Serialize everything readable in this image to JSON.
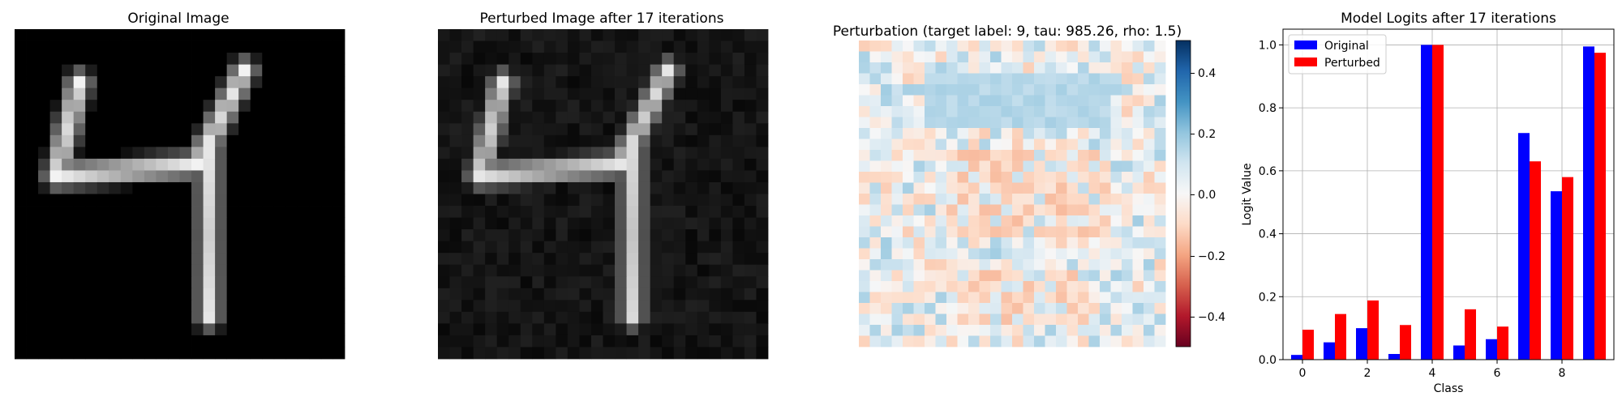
{
  "chart_data": [
    {
      "type": "image",
      "title": "Original Image",
      "colormap": "gray",
      "grid_size": [
        28,
        28
      ],
      "strokes": [
        {
          "from": [
            5,
            4
          ],
          "to": [
            3,
            12
          ],
          "intensity": 0.95
        },
        {
          "from": [
            3,
            12
          ],
          "to": [
            15,
            11
          ],
          "intensity": 0.95
        },
        {
          "from": [
            15,
            11
          ],
          "to": [
            19,
            3
          ],
          "intensity": 0.95
        },
        {
          "from": [
            16,
            10
          ],
          "to": [
            16,
            24
          ],
          "intensity": 0.9
        }
      ]
    },
    {
      "type": "image",
      "title": "Perturbed Image after 17 iterations",
      "colormap": "gray",
      "grid_size": [
        28,
        28
      ],
      "background_level": 0.08,
      "strokes": [
        {
          "from": [
            5,
            4
          ],
          "to": [
            3,
            12
          ],
          "intensity": 0.9
        },
        {
          "from": [
            3,
            12
          ],
          "to": [
            15,
            11
          ],
          "intensity": 0.9
        },
        {
          "from": [
            15,
            11
          ],
          "to": [
            19,
            3
          ],
          "intensity": 0.9
        },
        {
          "from": [
            16,
            10
          ],
          "to": [
            16,
            24
          ],
          "intensity": 0.85
        }
      ]
    },
    {
      "type": "heatmap",
      "title": "Perturbation (target label: 9, tau: 985.26, rho: 1.5)",
      "colormap": "RdBu",
      "grid_size": [
        28,
        28
      ],
      "vmin": -0.5,
      "vmax": 0.5,
      "colorbar_ticks": [
        "0.4",
        "0.2",
        "0.0",
        "−0.2",
        "−0.4"
      ],
      "colorbar_tick_values": [
        0.4,
        0.2,
        0.0,
        -0.2,
        -0.4
      ]
    },
    {
      "type": "bar",
      "title": "Model Logits after 17 iterations",
      "xlabel": "Class",
      "ylabel": "Logit Value",
      "categories": [
        "0",
        "1",
        "2",
        "3",
        "4",
        "5",
        "6",
        "7",
        "8",
        "9"
      ],
      "xticks": [
        "0",
        "2",
        "4",
        "6",
        "8"
      ],
      "xtick_values": [
        0,
        2,
        4,
        6,
        8
      ],
      "yticks": [
        "0.0",
        "0.2",
        "0.4",
        "0.6",
        "0.8",
        "1.0"
      ],
      "ytick_values": [
        0.0,
        0.2,
        0.4,
        0.6,
        0.8,
        1.0
      ],
      "ylim": [
        0,
        1.05
      ],
      "grid": true,
      "legend_position": "top-left",
      "series": [
        {
          "name": "Original",
          "color": "#0000ff",
          "values": [
            0.015,
            0.055,
            0.1,
            0.018,
            1.0,
            0.045,
            0.065,
            0.72,
            0.535,
            0.995
          ]
        },
        {
          "name": "Perturbed",
          "color": "#ff0000",
          "values": [
            0.095,
            0.145,
            0.188,
            0.11,
            1.0,
            0.16,
            0.105,
            0.63,
            0.58,
            0.975
          ]
        }
      ]
    }
  ]
}
